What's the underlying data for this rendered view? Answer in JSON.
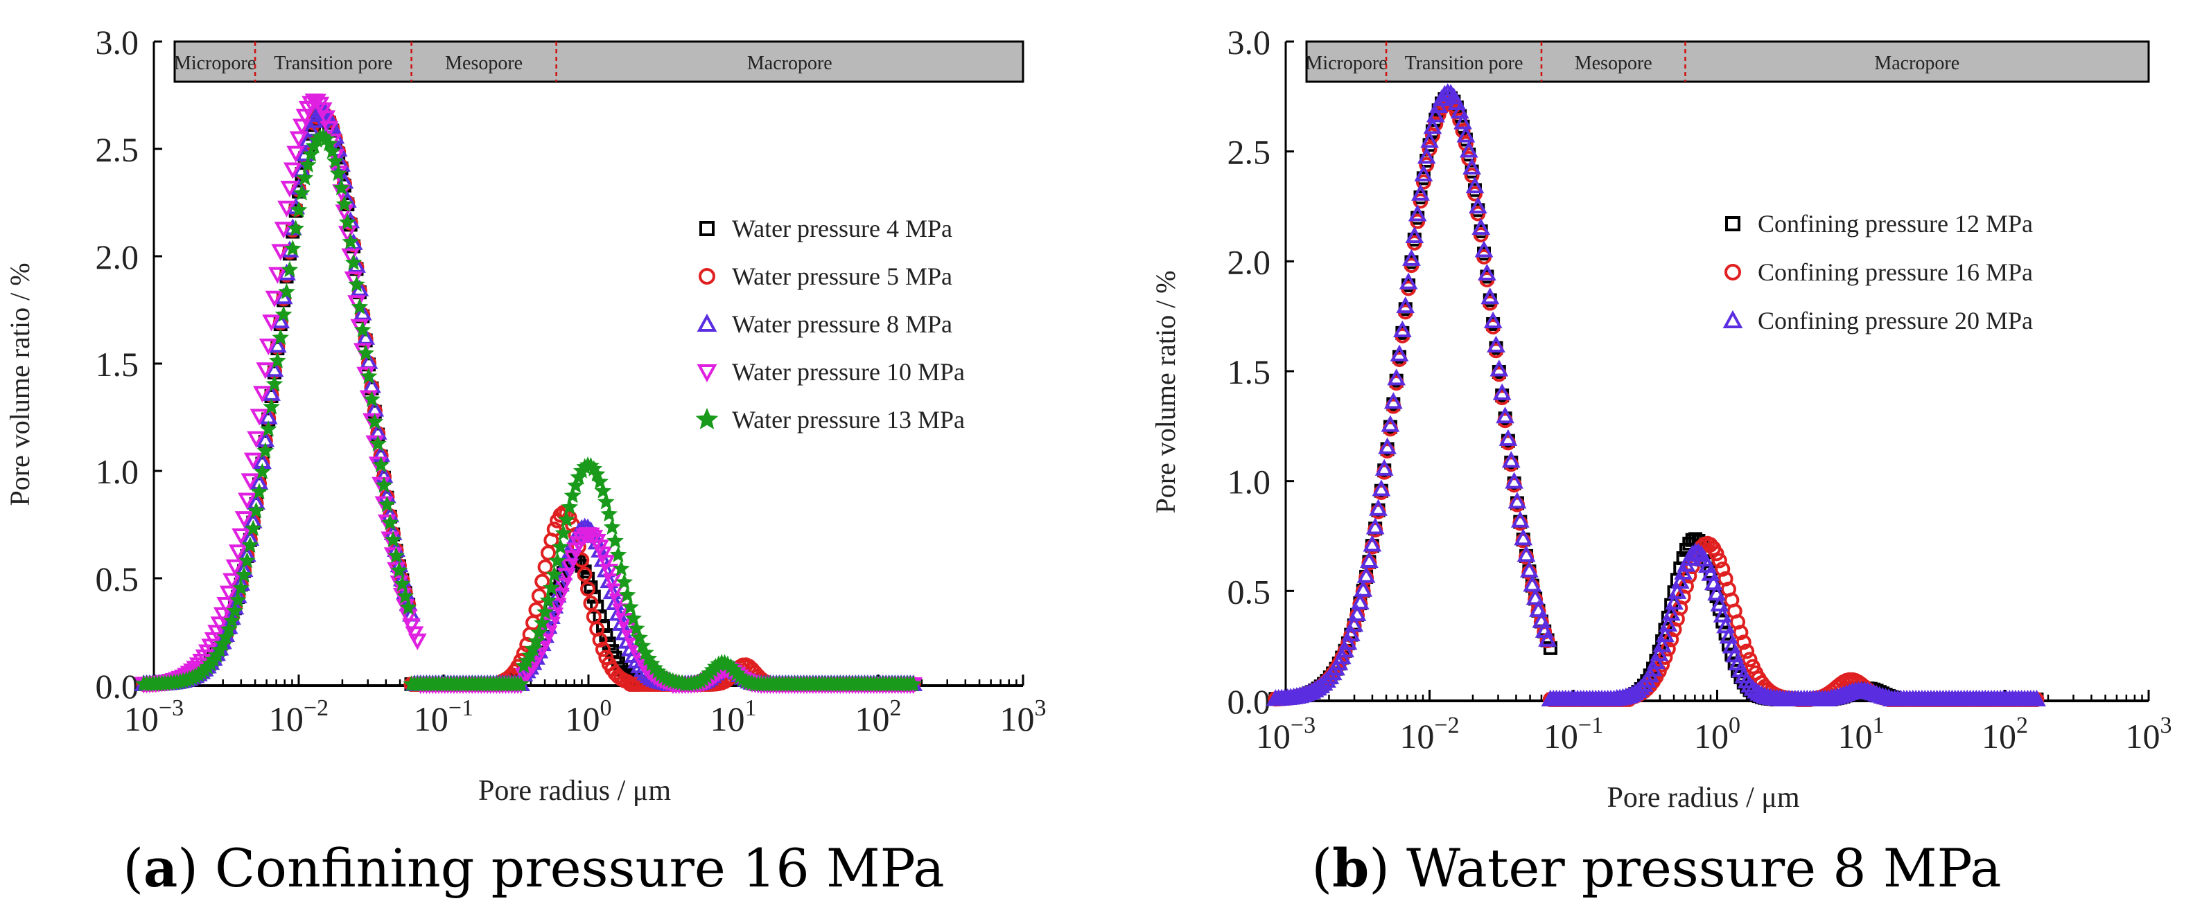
{
  "chart_data": [
    {
      "panel_id": "a",
      "type": "scatter",
      "caption_letter": "a",
      "caption_text": "Confining pressure 16 MPa",
      "xlabel": "Pore radius / μm",
      "ylabel": "Pore volume ratio / %",
      "xscale": "log",
      "xlim": [
        0.001,
        1000
      ],
      "ylim": [
        0,
        3.0
      ],
      "x_ticks": [
        {
          "base": "10",
          "exp": "−3",
          "value": 0.001
        },
        {
          "base": "10",
          "exp": "−2",
          "value": 0.01
        },
        {
          "base": "10",
          "exp": "−1",
          "value": 0.1
        },
        {
          "base": "10",
          "exp": "0",
          "value": 1
        },
        {
          "base": "10",
          "exp": "1",
          "value": 10
        },
        {
          "base": "10",
          "exp": "2",
          "value": 100
        },
        {
          "base": "10",
          "exp": "3",
          "value": 1000
        }
      ],
      "y_ticks": [
        "0.0",
        "0.5",
        "1.0",
        "1.5",
        "2.0",
        "2.5",
        "3.0"
      ],
      "pore_classes": [
        {
          "label": "Micropore",
          "from": 0.001,
          "to": 0.005
        },
        {
          "label": "Transition pore",
          "from": 0.005,
          "to": 0.06
        },
        {
          "label": "Mesopore",
          "from": 0.06,
          "to": 0.6
        },
        {
          "label": "Macropore",
          "from": 0.6,
          "to": 1000
        }
      ],
      "legend_position": "right",
      "series": [
        {
          "name": "Water pressure 4 MPa",
          "marker": "square",
          "color": "#000000",
          "peaks": [
            {
              "center": 0.0145,
              "height": 2.65,
              "sigma_dec": 0.3,
              "from": 0.00085,
              "to": 0.058
            },
            {
              "center": 0.8,
              "height": 0.58,
              "sigma_dec": 0.16,
              "from": 0.3,
              "to": 2.6
            },
            {
              "center": 9.5,
              "height": 0.07,
              "sigma_dec": 0.08,
              "from": 5.0,
              "to": 16.0
            }
          ],
          "x_range": [
            0.00085,
            180
          ]
        },
        {
          "name": "Water pressure 5 MPa",
          "marker": "circle",
          "color": "#e02020",
          "peaks": [
            {
              "center": 0.0145,
              "height": 2.66,
              "sigma_dec": 0.3,
              "from": 0.00085,
              "to": 0.058
            },
            {
              "center": 0.68,
              "height": 0.8,
              "sigma_dec": 0.15,
              "from": 0.25,
              "to": 1.9
            },
            {
              "center": 12.0,
              "height": 0.09,
              "sigma_dec": 0.07,
              "from": 7.0,
              "to": 18.0
            }
          ],
          "x_range": [
            0.00085,
            180
          ]
        },
        {
          "name": "Water pressure 8 MPa",
          "marker": "triangle-up",
          "color": "#5a2ee0",
          "peaks": [
            {
              "center": 0.0145,
              "height": 2.67,
              "sigma_dec": 0.3,
              "from": 0.00085,
              "to": 0.06
            },
            {
              "center": 0.95,
              "height": 0.73,
              "sigma_dec": 0.18,
              "from": 0.35,
              "to": 3.5
            },
            {
              "center": 9.0,
              "height": 0.08,
              "sigma_dec": 0.08,
              "from": 5.0,
              "to": 15.0
            }
          ],
          "x_range": [
            0.00085,
            180
          ]
        },
        {
          "name": "Water pressure 10 MPa",
          "marker": "triangle-down",
          "color": "#e020e0",
          "peaks": [
            {
              "center": 0.013,
              "height": 2.72,
              "sigma_dec": 0.31,
              "from": 0.00085,
              "to": 0.068
            },
            {
              "center": 1.0,
              "height": 0.7,
              "sigma_dec": 0.19,
              "from": 0.35,
              "to": 3.8
            },
            {
              "center": 9.0,
              "height": 0.07,
              "sigma_dec": 0.08,
              "from": 5.0,
              "to": 15.0
            }
          ],
          "x_range": [
            0.00085,
            180
          ]
        },
        {
          "name": "Water pressure 13 MPa",
          "marker": "star",
          "color": "#1a9a1a",
          "peaks": [
            {
              "center": 0.0145,
              "height": 2.55,
              "sigma_dec": 0.3,
              "from": 0.00085,
              "to": 0.058
            },
            {
              "center": 1.0,
              "height": 1.02,
              "sigma_dec": 0.2,
              "from": 0.35,
              "to": 4.5
            },
            {
              "center": 8.5,
              "height": 0.1,
              "sigma_dec": 0.08,
              "from": 5.0,
              "to": 14.0
            }
          ],
          "x_range": [
            0.00085,
            180
          ]
        }
      ]
    },
    {
      "panel_id": "b",
      "type": "scatter",
      "caption_letter": "b",
      "caption_text": "Water pressure 8 MPa",
      "xlabel": "Pore radius / μm",
      "ylabel": "Pore volume ratio / %",
      "xscale": "log",
      "xlim": [
        0.001,
        1000
      ],
      "ylim": [
        0,
        3.0
      ],
      "x_ticks": [
        {
          "base": "10",
          "exp": "−3",
          "value": 0.001
        },
        {
          "base": "10",
          "exp": "−2",
          "value": 0.01
        },
        {
          "base": "10",
          "exp": "−1",
          "value": 0.1
        },
        {
          "base": "10",
          "exp": "0",
          "value": 1
        },
        {
          "base": "10",
          "exp": "1",
          "value": 10
        },
        {
          "base": "10",
          "exp": "2",
          "value": 100
        },
        {
          "base": "10",
          "exp": "3",
          "value": 1000
        }
      ],
      "y_ticks": [
        "0.0",
        "0.5",
        "1.0",
        "1.5",
        "2.0",
        "2.5",
        "3.0"
      ],
      "pore_classes": [
        {
          "label": "Micropore",
          "from": 0.001,
          "to": 0.005
        },
        {
          "label": "Transition pore",
          "from": 0.005,
          "to": 0.06
        },
        {
          "label": "Mesopore",
          "from": 0.06,
          "to": 0.6
        },
        {
          "label": "Macropore",
          "from": 0.6,
          "to": 1000
        }
      ],
      "legend_position": "right",
      "series": [
        {
          "name": "Confining pressure 12 MPa",
          "marker": "square",
          "color": "#000000",
          "peaks": [
            {
              "center": 0.0135,
              "height": 2.74,
              "sigma_dec": 0.32,
              "from": 0.00085,
              "to": 0.07
            },
            {
              "center": 0.7,
              "height": 0.73,
              "sigma_dec": 0.16,
              "from": 0.18,
              "to": 2.6
            },
            {
              "center": 11.0,
              "height": 0.05,
              "sigma_dec": 0.1,
              "from": 6.0,
              "to": 18.0
            }
          ],
          "x_range": [
            0.00085,
            170
          ]
        },
        {
          "name": "Confining pressure 16 MPa",
          "marker": "circle",
          "color": "#e02020",
          "peaks": [
            {
              "center": 0.0135,
              "height": 2.72,
              "sigma_dec": 0.32,
              "from": 0.00085,
              "to": 0.066
            },
            {
              "center": 0.85,
              "height": 0.71,
              "sigma_dec": 0.18,
              "from": 0.25,
              "to": 3.5
            },
            {
              "center": 8.5,
              "height": 0.09,
              "sigma_dec": 0.1,
              "from": 4.5,
              "to": 15.0
            }
          ],
          "x_range": [
            0.00085,
            170
          ]
        },
        {
          "name": "Confining pressure 20 MPa",
          "marker": "triangle-up",
          "color": "#5a2ee0",
          "peaks": [
            {
              "center": 0.0135,
              "height": 2.76,
              "sigma_dec": 0.32,
              "from": 0.00085,
              "to": 0.068
            },
            {
              "center": 0.72,
              "height": 0.67,
              "sigma_dec": 0.17,
              "from": 0.2,
              "to": 2.8
            },
            {
              "center": 10.0,
              "height": 0.04,
              "sigma_dec": 0.1,
              "from": 6.0,
              "to": 16.0
            }
          ],
          "x_range": [
            0.00085,
            170
          ]
        }
      ]
    }
  ]
}
